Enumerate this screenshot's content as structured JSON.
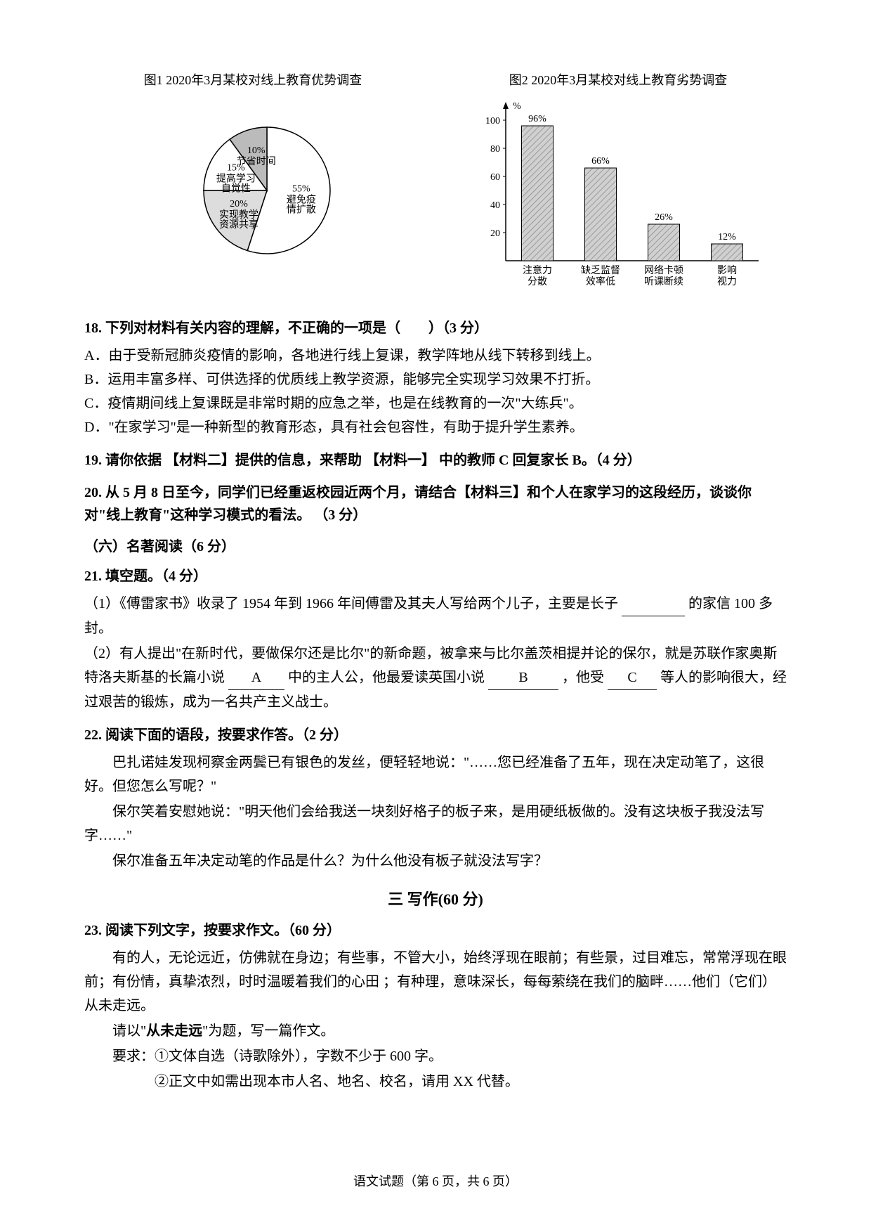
{
  "chart1": {
    "title": "图1 2020年3月某校对线上教育优势调查",
    "type": "pie",
    "background_color": "#ffffff",
    "label_fontsize": 14,
    "slices": [
      {
        "label": "避免疫情扩散",
        "value": 55,
        "color": "#ffffff",
        "stroke": "#000000"
      },
      {
        "label": "实现教学资源共享",
        "value": 20,
        "color": "#dddddd",
        "stroke": "#000000"
      },
      {
        "label": "提高学习自觉性",
        "value": 15,
        "color": "#ffffff",
        "stroke": "#000000"
      },
      {
        "label": "节省时间",
        "value": 10,
        "color": "#bbbbbb",
        "hatch": "diagonal",
        "stroke": "#000000"
      }
    ]
  },
  "chart2": {
    "title": "图2 2020年3月某校对线上教育劣势调查",
    "type": "bar",
    "categories": [
      "注意力分散",
      "缺乏监督效率低",
      "网络卡顿听课断续",
      "影响视力"
    ],
    "values": [
      96,
      66,
      26,
      12
    ],
    "bar_colors": [
      "#c0c0c0",
      "#c0c0c0",
      "#c0c0c0",
      "#c0c0c0"
    ],
    "bar_hatch": "diagonal",
    "ylabel": "%",
    "ylim": [
      0,
      110
    ],
    "ytick_step": 20,
    "yticks": [
      20,
      40,
      60,
      80,
      100
    ],
    "background_color": "#ffffff",
    "axis_color": "#000000",
    "label_fontsize": 14,
    "value_label_fontsize": 14,
    "bar_width": 0.5
  },
  "q18": {
    "heading": "18. 下列对材料有关内容的理解，不正确的一项是（　　）（3 分）",
    "optA": "A．由于受新冠肺炎疫情的影响，各地进行线上复课，教学阵地从线下转移到线上。",
    "optB": "B．运用丰富多样、可供选择的优质线上教学资源，能够完全实现学习效果不打折。",
    "optC": "C．疫情期间线上复课既是非常时期的应急之举，也是在线教育的一次\"大练兵\"。",
    "optD": "D．\"在家学习\"是一种新型的教育形态，具有社会包容性，有助于提升学生素养。"
  },
  "q19": {
    "heading": "19. 请你依据 【材料二】提供的信息，来帮助 【材料一】 中的教师 C 回复家长 B。（4 分）"
  },
  "q20": {
    "heading": "20. 从 5 月 8 日至今，同学们已经重返校园近两个月，请结合【材料三】和个人在家学习的这段经历，谈谈你对\"线上教育\"这种学习模式的看法。 （3 分）"
  },
  "section6": {
    "title": "（六）名著阅读（6 分）"
  },
  "q21": {
    "heading": "21. 填空题。（4 分）",
    "item1_pre": "（1）《傅雷家书》收录了 1954 年到 1966 年间傅雷及其夫人写给两个儿子，主要是长子",
    "item1_suf": "的家信 100 多封。",
    "item2_pre": "（2）有人提出\"在新时代，要做保尔还是比尔\"的新命题，被拿来与比尔盖茨相提并论的保尔，就是苏联作家奥斯特洛夫斯基的长篇小说",
    "blankA": "A",
    "item2_mid1": "中的主人公，他最爱读英国小说",
    "blankB": "B",
    "item2_mid2": "，他受",
    "blankC": "C",
    "item2_suf": "等人的影响很大，经过艰苦的锻炼，成为一名共产主义战士。"
  },
  "q22": {
    "heading": "22. 阅读下面的语段，按要求作答。（2 分）",
    "p1": "巴扎诺娃发现柯察金两鬓已有银色的发丝，便轻轻地说：\"……您已经准备了五年，现在决定动笔了，这很好。但您怎么写呢？\"",
    "p2": "保尔笑着安慰她说：\"明天他们会给我送一块刻好格子的板子来，是用硬纸板做的。没有这块板子我没法写字……\"",
    "question": "保尔准备五年决定动笔的作品是什么？为什么他没有板子就没法写字？"
  },
  "section_write": {
    "title": "三 写作(60 分)"
  },
  "q23": {
    "heading": "23. 阅读下列文字，按要求作文。（60 分）",
    "p1": "有的人，无论远近，仿佛就在身边；有些事，不管大小，始终浮现在眼前；有些景，过目难忘，常常浮现在眼前；有份情，真挚浓烈，时时温暖着我们的心田 ；有种理，意味深长，每每萦绕在我们的脑畔……他们（它们） 从未走远。",
    "p2_pre": "请以\"",
    "p2_bold": "从未走远",
    "p2_suf": "\"为题，写一篇作文。",
    "req1": "要求：①文体自选（诗歌除外），字数不少于 600 字。",
    "req2": "②正文中如需出现本市人名、地名、校名，请用 XX 代替。"
  },
  "footer": "语文试题（第 6 页，共 6 页）"
}
